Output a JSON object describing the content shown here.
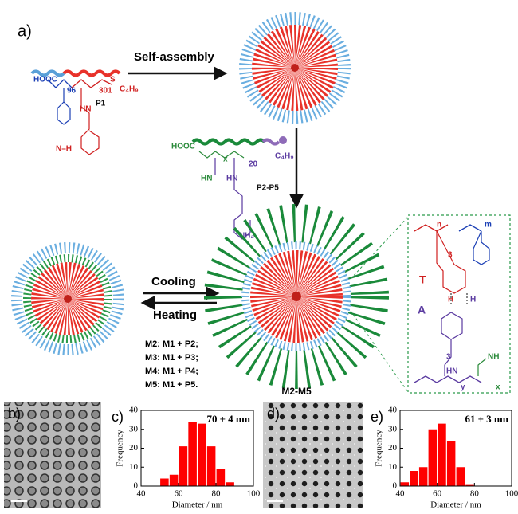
{
  "panels": [
    "a)",
    "b)",
    "c)",
    "d)",
    "e)"
  ],
  "schematic": {
    "self_assembly": "Self-assembly",
    "p1": {
      "hooc": "HOOC",
      "n": "96",
      "m": "301",
      "tail": "C₄H₉",
      "amide": "HN",
      "name": "P1",
      "imide": "N–H",
      "sulfur": "S"
    },
    "p2": {
      "hooc": "HOOC",
      "x": "x",
      "n": "20",
      "tail": "C₄H₉",
      "amide1": "HN",
      "amide2": "HN",
      "name": "P2-P5",
      "amine": "NH₂"
    },
    "cooling": "Cooling",
    "heating": "Heating",
    "mixtures": [
      "M2: M1 + P2;",
      "M3: M1 + P3;",
      "M4: M1 + P4;",
      "M5: M1 + P5."
    ],
    "micelle_name": "M2-M5",
    "inset": {
      "n": "n",
      "m": "m",
      "t": "T",
      "a": "A",
      "hn": "HN",
      "nh": "NH",
      "h1": "H",
      "h2": "H",
      "x": "x",
      "y": "y",
      "three1": "3",
      "three2": "3"
    }
  },
  "chart_data": [
    {
      "type": "histogram",
      "annotation": "70 ± 4 nm",
      "xlabel": "Diameter / nm",
      "ylabel": "Frequency",
      "bins": [
        50,
        55,
        60,
        65,
        70,
        75,
        80,
        85,
        90
      ],
      "values": [
        4,
        6,
        21,
        34,
        33,
        21,
        9,
        2
      ],
      "color": "#ff0000",
      "xlim": [
        40,
        100
      ],
      "xticks": [
        40,
        60,
        80,
        100
      ],
      "ylim": [
        0,
        40
      ],
      "yticks": [
        0,
        10,
        20,
        30,
        40
      ]
    },
    {
      "type": "histogram",
      "annotation": "61 ± 3 nm",
      "xlabel": "Diameter / nm",
      "ylabel": "Frequency",
      "bins": [
        40,
        45,
        50,
        55,
        60,
        65,
        70,
        75,
        80
      ],
      "values": [
        2,
        8,
        10,
        30,
        33,
        24,
        10,
        1
      ],
      "color": "#ff0000",
      "xlim": [
        40,
        100
      ],
      "xticks": [
        40,
        60,
        80,
        100
      ],
      "ylim": [
        0,
        40
      ],
      "yticks": [
        0,
        10,
        20,
        30,
        40
      ]
    }
  ]
}
